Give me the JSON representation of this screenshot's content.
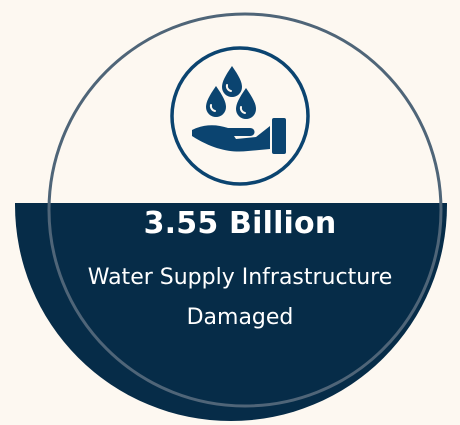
{
  "stat": {
    "value": "3.55 Billion",
    "label_line1": "Water Supply Infrastructure",
    "label_line2": "Damaged"
  },
  "icon": "hand-water-drops-icon",
  "colors": {
    "background": "#fdf8f1",
    "navy": "#062c48",
    "ring": "#4f6578",
    "text": "#ffffff"
  }
}
